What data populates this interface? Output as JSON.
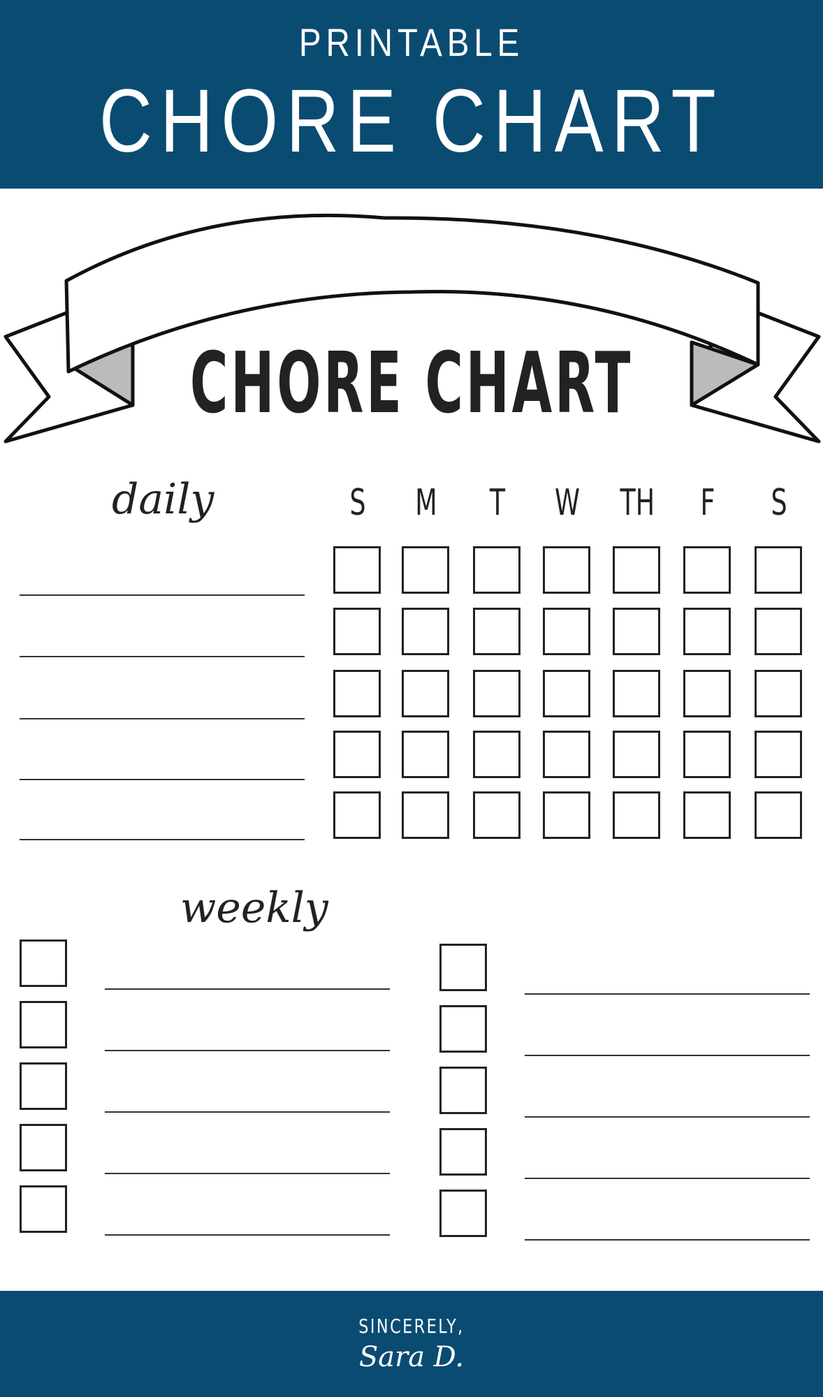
{
  "header": {
    "pretitle": "PRINTABLE",
    "title": "CHORE CHART"
  },
  "ribbon_title": "CHORE CHART",
  "daily": {
    "label": "daily",
    "days": [
      "S",
      "M",
      "T",
      "W",
      "TH",
      "F",
      "S"
    ],
    "rows": 5
  },
  "weekly": {
    "label": "weekly",
    "rows_per_column": 5,
    "columns": 2
  },
  "footer": {
    "line1": "SINCERELY,",
    "signature": "Sara D."
  },
  "colors": {
    "brand": "#0a4b72"
  }
}
